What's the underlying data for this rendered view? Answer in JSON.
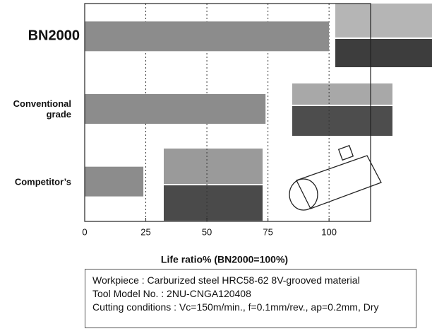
{
  "chart_data": {
    "type": "hbar",
    "categories": [
      "BN2000",
      "Conventional grade",
      "Competitor’s"
    ],
    "values": [
      100,
      74,
      24
    ],
    "color": "#8c8c8c",
    "xlim": [
      0,
      117
    ],
    "xticks": [
      0,
      25,
      50,
      75,
      100
    ],
    "grid": true,
    "xlabel": "Life ratio% (BN2000=100%)"
  },
  "notes": {
    "lines": [
      "Workpiece : Carburized steel HRC58-62 8V-grooved material",
      "Tool Model No. : 2NU-CNGA120408",
      "Cutting conditions : Vc=150m/min., f=0.1mm/rev., ap=0.2mm, Dry"
    ]
  }
}
